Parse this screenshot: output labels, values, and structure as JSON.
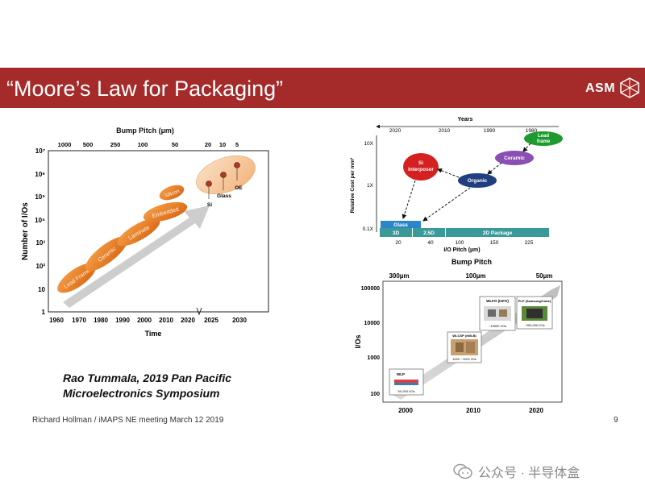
{
  "slide": {
    "title": "“Moore’s Law for Packaging”",
    "logo_text": "ASM",
    "citation_line1": "Rao Tummala, 2019 Pan Pacific",
    "citation_line2": "Microelectronics Symposium",
    "footer": "Richard Hollman / iMAPS NE meeting March 12 2019",
    "page_number": "9",
    "watermark": "公众号 · 半导体盒"
  },
  "colors": {
    "header": "#a52a2a",
    "orange": "#e8781e",
    "light_orange": "#f7c9a0",
    "arrow_gray": "#c8c8c8",
    "si_red": "#d42020",
    "ceramic_purple": "#8a4fb3",
    "organic_blue": "#1f3f80",
    "lead_green": "#1f9a30",
    "band_teal": "#3a9a9a",
    "glass_blue": "#2a86c8"
  },
  "chart_data": [
    {
      "type": "scatter",
      "title": "Bump Pitch (µm)",
      "top_tick_labels": [
        "1000",
        "500",
        "250",
        "100",
        "50",
        "20",
        "10",
        "5"
      ],
      "x_tick_labels": [
        "1960",
        "1970",
        "1980",
        "1990",
        "2000",
        "2010",
        "2020",
        "2025",
        "2030"
      ],
      "xlabel": "Time",
      "ylabel": "Number of I/Os",
      "y_tick_labels": [
        "1",
        "10",
        "10²",
        "10³",
        "10⁴",
        "10⁵",
        "10⁶",
        "10⁷"
      ],
      "ylim": [
        1,
        10000000
      ],
      "y_scale": "log",
      "series": [
        {
          "name": "Lead Frame",
          "x": 1970,
          "y": 30
        },
        {
          "name": "Ceramic",
          "x": 1983,
          "y": 200
        },
        {
          "name": "Laminate",
          "x": 1995,
          "y": 3000
        },
        {
          "name": "Embedded",
          "x": 2003,
          "y": 30000
        },
        {
          "name": "Silicon",
          "x": 2012,
          "y": 200000
        },
        {
          "name": "Si",
          "x": 2025,
          "y": 500000
        },
        {
          "name": "Glass",
          "x": 2026,
          "y": 1000000
        },
        {
          "name": "OE",
          "x": 2028,
          "y": 2500000
        }
      ]
    },
    {
      "type": "scatter",
      "top_label": "Years",
      "year_tick_labels": [
        "2020",
        "2010",
        "1990",
        "1980"
      ],
      "ylabel": "Relative Cost per mm²",
      "y_tick_labels": [
        "10X",
        "1X",
        "0.1X"
      ],
      "xlabel": "I/O Pitch (µm)",
      "x_tick_labels": [
        "20",
        "40",
        "100",
        "150",
        "225"
      ],
      "band_labels": [
        "3D",
        "2.5D",
        "2D Package"
      ],
      "nodes": [
        {
          "name": "Lead frame",
          "label_line1": "Lead",
          "label_line2": "frame"
        },
        {
          "name": "Ceramic",
          "label_line1": "Ceramic"
        },
        {
          "name": "Organic",
          "label_line1": "Organic"
        },
        {
          "name": "Si Interposer",
          "label_line1": "Si",
          "label_line2": "Interposer"
        },
        {
          "name": "Glass",
          "label_line1": "Glass"
        }
      ]
    },
    {
      "type": "scatter",
      "title": "Bump Pitch",
      "top_tick_labels": [
        "300µm",
        "100µm",
        "50µm"
      ],
      "ylabel": "I/Os",
      "y_tick_labels": [
        "100000",
        "10000",
        "1000",
        "100"
      ],
      "x_tick_labels": [
        "2000",
        "2010",
        "2020"
      ],
      "boxes": [
        {
          "name": "WLP",
          "caption": "50-200 I/Os"
        },
        {
          "name": "WLCSP (eWLB)",
          "caption": "1000 ~ 2000 I/Os"
        },
        {
          "name": "WLFO (InFO)",
          "caption": "~10000 I/Os"
        },
        {
          "name": "PLP (Samsung/Cube)",
          "caption": "~200,000 I/Os"
        }
      ]
    }
  ]
}
